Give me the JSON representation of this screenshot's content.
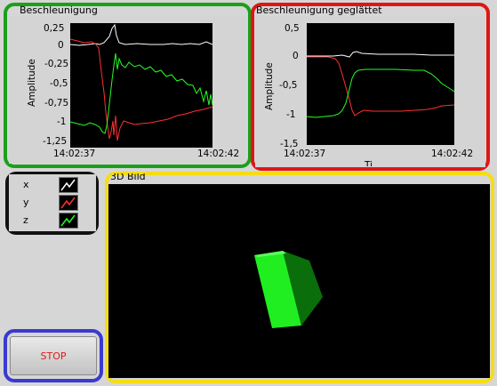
{
  "colors": {
    "x": "#ffffff",
    "y": "#ff3030",
    "z": "#22ff22"
  },
  "graph1": {
    "title": "Beschleunigung",
    "ylabel": "Amplitude",
    "yticks": [
      "0,25",
      "0",
      "-0,25",
      "-0,5",
      "-0,75",
      "-1",
      "-1,25"
    ],
    "xticks": [
      "14:02:37",
      "14:02:42"
    ]
  },
  "graph2": {
    "title": "Beschleunigung geglättet",
    "ylabel": "Amplitude",
    "yticks": [
      "0,5",
      "0",
      "-0,5",
      "-1",
      "-1,5"
    ],
    "xticks": [
      "14:02:37",
      "14:02:42"
    ],
    "xlabel_partial": "Ti"
  },
  "legend": {
    "items": [
      {
        "label": "x"
      },
      {
        "label": "y"
      },
      {
        "label": "z"
      }
    ]
  },
  "view3d": {
    "title": "3D Bild"
  },
  "stop": {
    "label": "STOP"
  }
}
